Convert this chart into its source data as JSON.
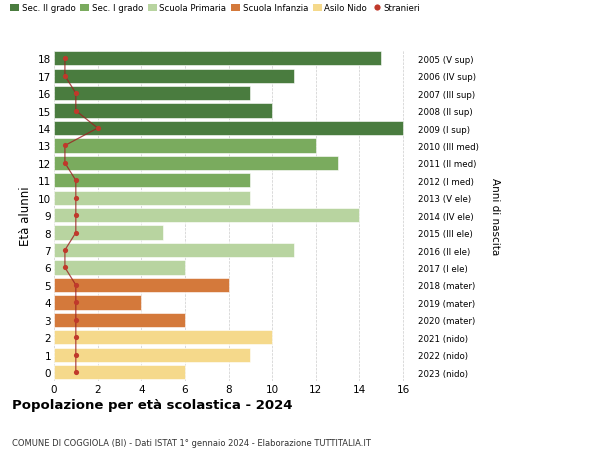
{
  "ages": [
    18,
    17,
    16,
    15,
    14,
    13,
    12,
    11,
    10,
    9,
    8,
    7,
    6,
    5,
    4,
    3,
    2,
    1,
    0
  ],
  "years_labels": [
    "2005 (V sup)",
    "2006 (IV sup)",
    "2007 (III sup)",
    "2008 (II sup)",
    "2009 (I sup)",
    "2010 (III med)",
    "2011 (II med)",
    "2012 (I med)",
    "2013 (V ele)",
    "2014 (IV ele)",
    "2015 (III ele)",
    "2016 (II ele)",
    "2017 (I ele)",
    "2018 (mater)",
    "2019 (mater)",
    "2020 (mater)",
    "2021 (nido)",
    "2022 (nido)",
    "2023 (nido)"
  ],
  "bar_values": [
    15,
    11,
    9,
    10,
    16,
    12,
    13,
    9,
    9,
    14,
    5,
    11,
    6,
    8,
    4,
    6,
    10,
    9,
    6
  ],
  "stranieri_x": [
    0.5,
    0.5,
    1.0,
    1.0,
    2.0,
    0.5,
    0.5,
    1.0,
    1.0,
    1.0,
    1.0,
    0.5,
    0.5,
    1.0,
    1.0,
    1.0,
    1.0,
    1.0,
    1.0
  ],
  "bar_colors": [
    "#4a7c3f",
    "#4a7c3f",
    "#4a7c3f",
    "#4a7c3f",
    "#4a7c3f",
    "#7aab5e",
    "#7aab5e",
    "#7aab5e",
    "#b8d4a0",
    "#b8d4a0",
    "#b8d4a0",
    "#b8d4a0",
    "#b8d4a0",
    "#d4793b",
    "#d4793b",
    "#d4793b",
    "#f5d98b",
    "#f5d98b",
    "#f5d98b"
  ],
  "categories": [
    "Sec. II grado",
    "Sec. I grado",
    "Scuola Primaria",
    "Scuola Infanzia",
    "Asilo Nido",
    "Stranieri"
  ],
  "cat_colors": [
    "#4a7c3f",
    "#7aab5e",
    "#b8d4a0",
    "#d4793b",
    "#f5d98b",
    "#c0392b"
  ],
  "title": "Popolazione per età scolastica - 2024",
  "subtitle": "COMUNE DI COGGIOLA (BI) - Dati ISTAT 1° gennaio 2024 - Elaborazione TUTTITALIA.IT",
  "ylabel": "Età alunni",
  "right_ylabel": "Anni di nascita",
  "xticks": [
    0,
    2,
    4,
    6,
    8,
    10,
    12,
    14,
    16
  ],
  "bg_color": "#ffffff",
  "grid_color": "#cccccc"
}
